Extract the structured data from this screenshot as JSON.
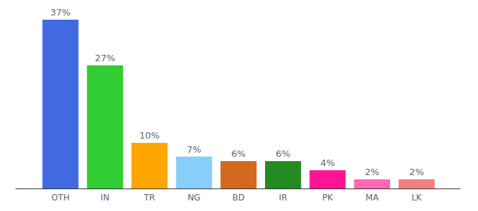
{
  "chart_data": {
    "type": "bar",
    "categories": [
      "OTH",
      "IN",
      "TR",
      "NG",
      "BD",
      "IR",
      "PK",
      "MA",
      "LK"
    ],
    "values": [
      37,
      27,
      10,
      7,
      6,
      6,
      4,
      2,
      2
    ],
    "value_labels": [
      "37%",
      "27%",
      "10%",
      "7%",
      "6%",
      "6%",
      "4%",
      "2%",
      "2%"
    ],
    "colors": [
      "#4169e1",
      "#32cd32",
      "#ffa500",
      "#87cefa",
      "#d2691e",
      "#228b22",
      "#ff1493",
      "#ff69b4",
      "#f08080"
    ],
    "data_labels": true,
    "tick_labels": "x"
  }
}
